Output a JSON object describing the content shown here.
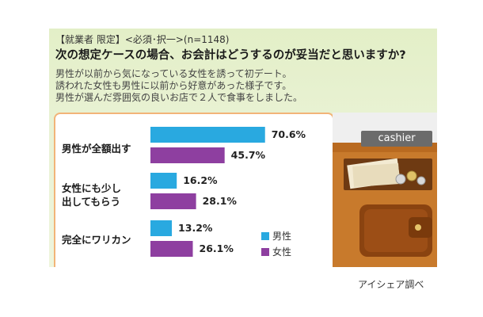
{
  "header": {
    "tag": "【就業者 限定】<必須･択一>(n=1148)",
    "question": "次の想定ケースの場合、お会計はどうするのが妥当だと思いますか?",
    "scenario": [
      "男性が以前から気になっている女性を誘って初デート。",
      "誘われた女性も男性に以前から好意があった様子です。",
      "男性が選んだ雰囲気の良いお店で２人で食事をしました。"
    ]
  },
  "illustration": {
    "sign_text": "cashier",
    "icons": [
      "cash-tray-icon",
      "wallet-icon"
    ]
  },
  "source": "アイシェア調べ",
  "colors": {
    "male": "#29a9e0",
    "female": "#8e3fa0",
    "panel_border": "#f2b478"
  },
  "chart_data": {
    "type": "bar",
    "orientation": "horizontal",
    "title": "",
    "xlabel": "",
    "ylabel": "",
    "value_unit": "%",
    "xlim": [
      0,
      100
    ],
    "grid": false,
    "legend_position": "bottom-right",
    "categories": [
      [
        "男性が全額出す"
      ],
      [
        "女性にも少し",
        "出してもらう"
      ],
      [
        "完全にワリカン"
      ]
    ],
    "series": [
      {
        "name": "男性",
        "values": [
          70.6,
          16.2,
          13.2
        ]
      },
      {
        "name": "女性",
        "values": [
          45.7,
          28.1,
          26.1
        ]
      }
    ]
  }
}
